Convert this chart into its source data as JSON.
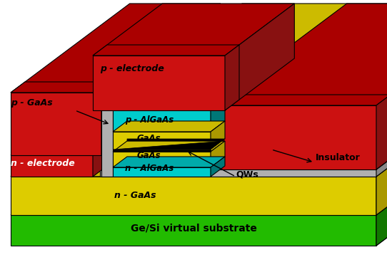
{
  "bg_color": "#ffffff",
  "colors": {
    "red_face": "#cc1111",
    "red_top": "#aa0000",
    "red_side": "#881111",
    "yellow_face": "#ddcc00",
    "yellow_top": "#ccbb00",
    "yellow_side": "#aa9900",
    "green_face": "#22bb00",
    "green_top": "#33cc00",
    "green_side": "#117700",
    "gray_face": "#b0b0b0",
    "gray_top": "#d0d0d0",
    "gray_side": "#888888",
    "cyan_face": "#00cccc",
    "cyan_top": "#00aaaa",
    "cyan_side": "#007777",
    "black": "#000000",
    "white": "#ffffff"
  },
  "labels": {
    "p_gaas": "p - GaAs",
    "p_electrode": "p - electrode",
    "n_electrode": "n - electrode",
    "insulator": "Insulator",
    "p_algaas": "p - AlGaAs",
    "gaas_top": "GaAs",
    "gaas_bot": "GaAs",
    "n_algaas": "n - AlGaAs",
    "n_gaas": "n - GaAs",
    "qws": "QWs",
    "substrate": "Ge/Si virtual substrate"
  }
}
